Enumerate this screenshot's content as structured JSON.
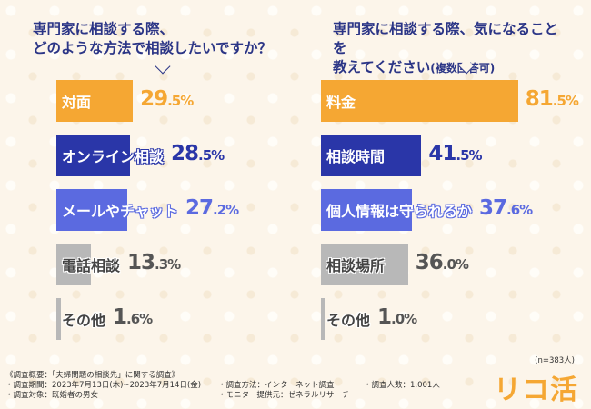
{
  "questions": {
    "left": {
      "line1": "専門家に相談する際、",
      "line2": "どのような方法で相談したいですか？"
    },
    "right": {
      "line1": "専門家に相談する際、気になることを",
      "line2": "教えてください",
      "note": "(複数回答可)"
    }
  },
  "chart_data": [
    {
      "type": "bar",
      "orientation": "horizontal",
      "unit": "%",
      "categories": [
        "対面",
        "オンライン相談",
        "メールやチャット",
        "電話相談",
        "その他"
      ],
      "values": [
        29.5,
        28.5,
        27.2,
        13.3,
        1.6
      ],
      "colors": [
        "#f5a733",
        "#2a36a8",
        "#5b6ae0",
        "#b8b8b8",
        "#b8b8b8"
      ],
      "value_colors": [
        "#f5a733",
        "#2a36a8",
        "#5b6ae0",
        "#555555",
        "#555555"
      ]
    },
    {
      "type": "bar",
      "orientation": "horizontal",
      "unit": "%",
      "categories": [
        "料金",
        "相談時間",
        "個人情報は守られるか",
        "相談場所",
        "その他"
      ],
      "values": [
        81.5,
        41.5,
        37.6,
        36.0,
        1.0
      ],
      "colors": [
        "#f5a733",
        "#2a36a8",
        "#5b6ae0",
        "#b8b8b8",
        "#b8b8b8"
      ],
      "value_colors": [
        "#f5a733",
        "#2a36a8",
        "#5b6ae0",
        "#555555",
        "#555555"
      ]
    }
  ],
  "sample": "(n=383人)",
  "footer": {
    "overview": "《調査概要：「夫婦問題の相談先」に関する調査》",
    "period": "・調査期間：2023年7月13日(木)~2023年7月14日(金)",
    "target": "・調査対象：既婚者の男女",
    "method": "・調査方法：インターネット調査",
    "provider": "・モニター提供元：ゼネラルリサーチ",
    "count": "・調査人数：1,001人"
  },
  "logo": "リコ活"
}
